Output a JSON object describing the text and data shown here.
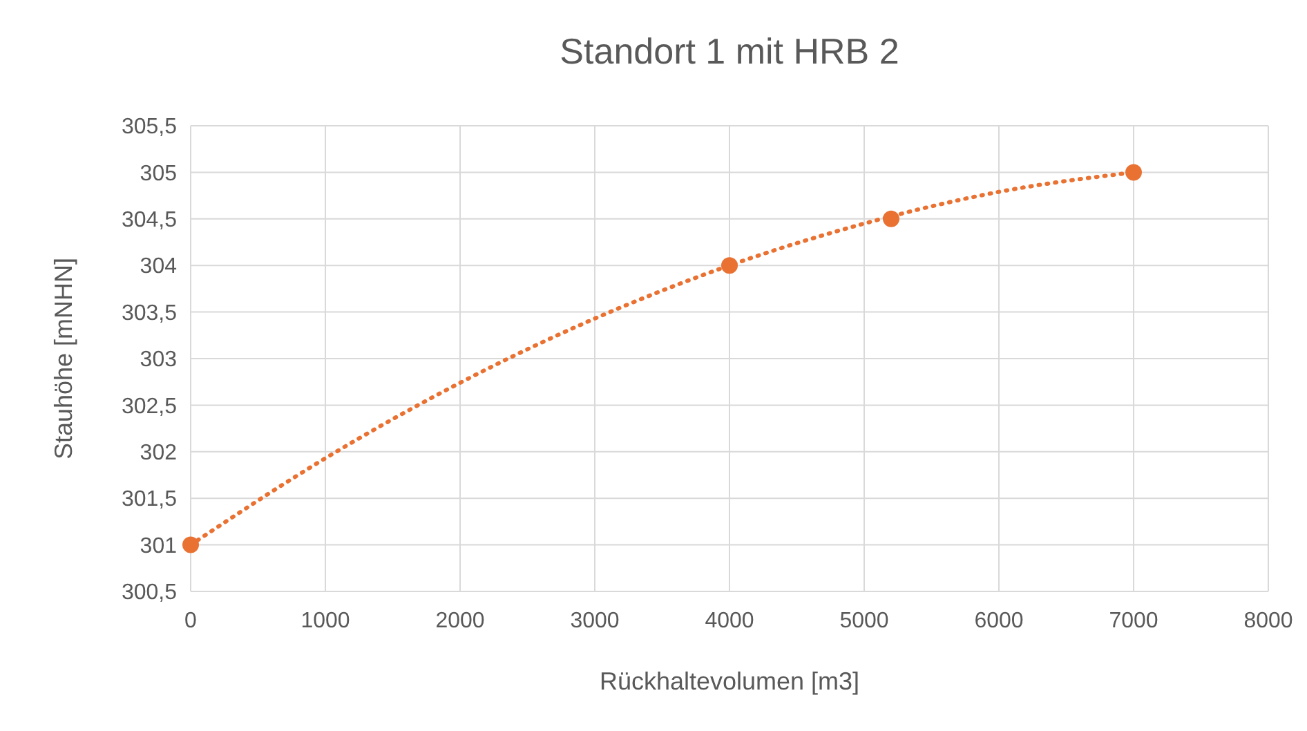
{
  "chart_data": {
    "type": "scatter",
    "title": "Standort 1 mit HRB 2",
    "xlabel": "Rückhaltevolumen [m3]",
    "ylabel": "Stauhöhe [mNHN]",
    "series": [
      {
        "color": "#e97132",
        "x": [
          0,
          4000,
          5200,
          7000
        ],
        "values": [
          301,
          304,
          304.5,
          305
        ],
        "marker": "circle"
      },
      {
        "type": "line",
        "color": "#e97132",
        "x": [
          0,
          1000,
          2000,
          3000,
          4000,
          5000,
          6000,
          7000
        ],
        "values": [
          301,
          301.93,
          302.74,
          303.43,
          304,
          304.45,
          304.79,
          305
        ],
        "line_style": "dotted"
      }
    ],
    "xlim": [
      0,
      8000
    ],
    "xticks": [
      0,
      1000,
      2000,
      3000,
      4000,
      5000,
      6000,
      7000,
      8000
    ],
    "ylim": [
      300.5,
      305.5
    ],
    "yticks": [
      {
        "value": 300.5,
        "label": "300,5"
      },
      301,
      {
        "value": 301.5,
        "label": "301,5"
      },
      302,
      {
        "value": 302.5,
        "label": "302,5"
      },
      303,
      {
        "value": 303.5,
        "label": "303,5"
      },
      304,
      {
        "value": 304.5,
        "label": "304,5"
      },
      305,
      {
        "value": 305.5,
        "label": "305,5"
      }
    ],
    "grid": true
  }
}
